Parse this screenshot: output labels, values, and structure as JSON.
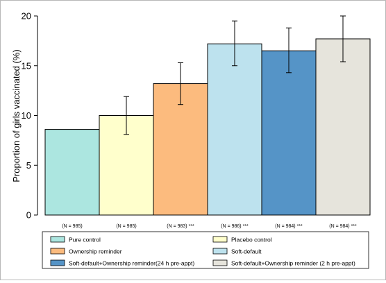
{
  "chart_data": {
    "type": "bar",
    "ylabel": "Proportion of girls vaccinated (%)",
    "xlabel": "",
    "title": "",
    "ylim": [
      0,
      20
    ],
    "yticks": [
      0,
      5,
      10,
      15,
      20
    ],
    "grid": false,
    "legend_placement": "bottom",
    "categories": [
      "(N = 985)",
      "(N = 985)",
      "(N = 983) ***",
      "(N = 986) ***",
      "(N = 984) ***",
      "(N = 984) ***"
    ],
    "series": [
      {
        "name": "Pure control",
        "value": 8.6,
        "ci": [
          8.6,
          8.6
        ],
        "color": "#ace6e0"
      },
      {
        "name": "Placebo control",
        "value": 10.0,
        "ci": [
          8.1,
          11.9
        ],
        "color": "#ffffcc"
      },
      {
        "name": "Ownership reminder",
        "value": 13.2,
        "ci": [
          11.1,
          15.3
        ],
        "color": "#fcbb7e"
      },
      {
        "name": "Soft-default",
        "value": 17.2,
        "ci": [
          15.0,
          19.5
        ],
        "color": "#bde2ee"
      },
      {
        "name": "Soft-default+Ownership reminder(24 h pre-appt)",
        "value": 16.5,
        "ci": [
          14.3,
          18.8
        ],
        "color": "#5594c7"
      },
      {
        "name": "Soft-default+Ownership reminder (2 h pre-appt)",
        "value": 17.7,
        "ci": [
          15.4,
          20.0
        ],
        "color": "#e6e4dc"
      }
    ]
  }
}
